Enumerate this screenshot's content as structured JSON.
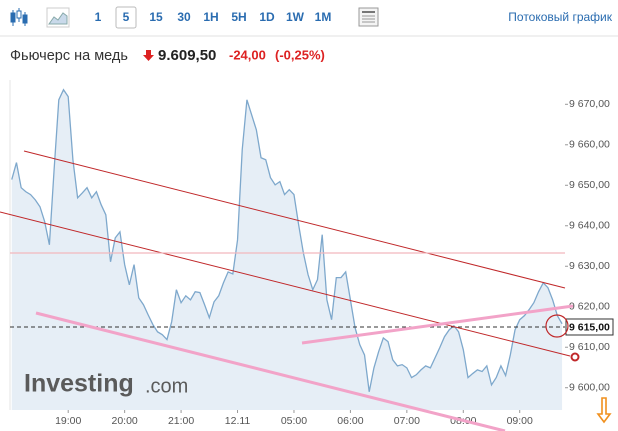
{
  "toolbar": {
    "intervals": [
      "1",
      "5",
      "15",
      "30",
      "1H",
      "5H",
      "1D",
      "1W",
      "1M"
    ],
    "selected_index": 1,
    "stream_link": "Потоковый график"
  },
  "header": {
    "name": "Фьючерс на медь",
    "price": "9.609,50",
    "change": "-24,00",
    "change_pct": "(-0,25%)"
  },
  "logo": {
    "main": "Investing",
    "suffix": ".com"
  },
  "chart_data": {
    "type": "area",
    "color": "#7ea8cc",
    "fill": "#e6eef6",
    "grid": false,
    "categories": [
      null,
      null,
      null,
      null,
      null,
      null,
      null,
      null,
      null,
      null,
      null,
      null,
      "19:00",
      null,
      null,
      null,
      null,
      null,
      null,
      null,
      null,
      null,
      null,
      null,
      "20:00",
      null,
      null,
      null,
      null,
      null,
      null,
      null,
      null,
      null,
      null,
      null,
      "21:00",
      null,
      null,
      null,
      null,
      null,
      null,
      null,
      null,
      null,
      null,
      null,
      "12.11",
      null,
      null,
      null,
      null,
      null,
      null,
      null,
      null,
      null,
      null,
      null,
      "05:00",
      null,
      null,
      null,
      null,
      null,
      null,
      null,
      null,
      null,
      null,
      null,
      "06:00",
      null,
      null,
      null,
      null,
      null,
      null,
      null,
      null,
      null,
      null,
      null,
      "07:00",
      null,
      null,
      null,
      null,
      null,
      null,
      null,
      null,
      null,
      null,
      null,
      "08:00",
      null,
      null,
      null,
      null,
      null,
      null,
      null,
      null,
      null,
      null,
      null,
      "09:00",
      null,
      null,
      null,
      null,
      null,
      null,
      null,
      null,
      null
    ],
    "values": [
      9651.4,
      9655.6,
      9649.4,
      9648.4,
      9647.7,
      9646.4,
      9644.7,
      9641.0,
      9635.3,
      9653.8,
      9671.1,
      9673.6,
      9671.9,
      9656.3,
      9646.9,
      9648.1,
      9649.4,
      9646.9,
      9648.4,
      9645.2,
      9642.7,
      9631.1,
      9637.0,
      9638.5,
      9630.4,
      9625.4,
      9630.4,
      9622.2,
      9620.5,
      9618.0,
      9615.6,
      9613.8,
      9613.1,
      9611.9,
      9616.3,
      9624.2,
      9621.0,
      9622.7,
      9621.7,
      9623.7,
      9623.5,
      9620.5,
      9617.3,
      9621.2,
      9622.7,
      9625.9,
      9628.6,
      9628.1,
      9636.5,
      9658.8,
      9671.1,
      9667.4,
      9663.7,
      9656.8,
      9656.3,
      9651.9,
      9650.1,
      9650.9,
      9647.7,
      9648.9,
      9647.7,
      9640.2,
      9633.3,
      9627.9,
      9624.2,
      9626.7,
      9637.8,
      9621.7,
      9616.8,
      9627.2,
      9627.2,
      9628.6,
      9621.7,
      9614.8,
      9610.6,
      9608.1,
      9599.0,
      9604.9,
      9608.9,
      9612.3,
      9611.4,
      9606.9,
      9605.4,
      9605.7,
      9604.9,
      9602.5,
      9603.2,
      9604.4,
      9605.4,
      9604.9,
      9607.4,
      9609.9,
      9612.6,
      9614.3,
      9615.3,
      9613.8,
      9609.4,
      9602.5,
      9603.5,
      9604.4,
      9604.0,
      9605.4,
      9600.7,
      9602.5,
      9605.4,
      9603.0,
      9608.1,
      9614.3,
      9616.8,
      9617.8,
      9619.3,
      9621.0,
      9623.7,
      9625.9,
      9624.7,
      9621.7,
      9617.8,
      9615.8
    ],
    "ylim": [
      9594.5,
      9676
    ],
    "yticks": [
      {
        "value": 9600,
        "label": "9 600,00"
      },
      {
        "value": 9610,
        "label": "9 610,00"
      },
      {
        "value": 9620,
        "label": "9 620,00"
      },
      {
        "value": 9630,
        "label": "9 630,00"
      },
      {
        "value": 9640,
        "label": "9 640,00"
      },
      {
        "value": 9650,
        "label": "9 650,00"
      },
      {
        "value": 9660,
        "label": "9 660,00"
      },
      {
        "value": 9670,
        "label": "9 670,00"
      }
    ],
    "current_price": {
      "value": 9615,
      "label": "9 615,00"
    }
  }
}
